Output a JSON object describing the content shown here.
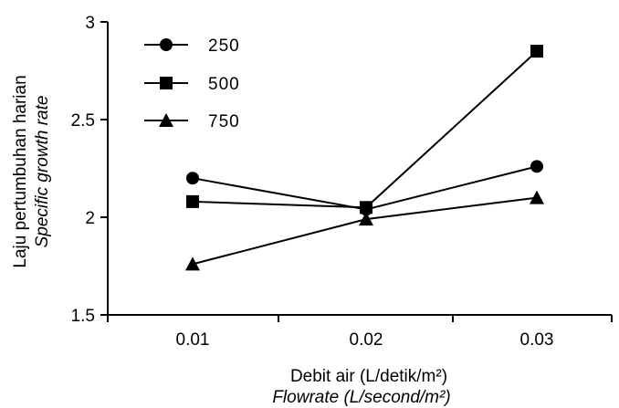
{
  "chart_data": {
    "type": "line",
    "categories": [
      "0.01",
      "0.02",
      "0.03"
    ],
    "x": [
      0.01,
      0.02,
      0.03
    ],
    "series": [
      {
        "name": "250",
        "marker": "circle",
        "values": [
          2.2,
          2.04,
          2.26
        ]
      },
      {
        "name": "500",
        "marker": "square",
        "values": [
          2.08,
          2.05,
          2.85
        ]
      },
      {
        "name": "750",
        "marker": "triangle",
        "values": [
          1.76,
          1.99,
          2.1
        ]
      }
    ],
    "yticks": [
      "1.5",
      "2",
      "2.5",
      "3"
    ],
    "ylim": [
      1.5,
      3
    ],
    "xlabel": "Debit air (L/detik/m²)",
    "xlabel_en": "Flowrate (L/second/m²)",
    "ylabel": "Laju pertumbuhan harian",
    "ylabel_en": "Specific growth rate",
    "legend_position": "top-left",
    "grid": false,
    "colors": {
      "line": "#000000",
      "marker": "#000000"
    }
  }
}
